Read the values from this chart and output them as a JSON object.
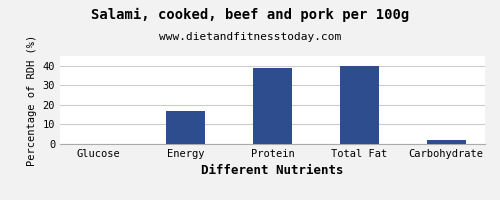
{
  "title": "Salami, cooked, beef and pork per 100g",
  "subtitle": "www.dietandfitnesstoday.com",
  "xlabel": "Different Nutrients",
  "ylabel": "Percentage of RDH (%)",
  "categories": [
    "Glucose",
    "Energy",
    "Protein",
    "Total Fat",
    "Carbohydrate"
  ],
  "values": [
    0,
    17,
    39,
    40,
    2
  ],
  "bar_color": "#2d4d8e",
  "ylim": [
    0,
    45
  ],
  "yticks": [
    0,
    10,
    20,
    30,
    40
  ],
  "background_color": "#f2f2f2",
  "plot_background_color": "#ffffff",
  "title_fontsize": 10,
  "subtitle_fontsize": 8,
  "xlabel_fontsize": 9,
  "ylabel_fontsize": 7.5,
  "tick_fontsize": 7.5,
  "xlabel_fontweight": "bold",
  "grid_color": "#cccccc",
  "bar_width": 0.45
}
